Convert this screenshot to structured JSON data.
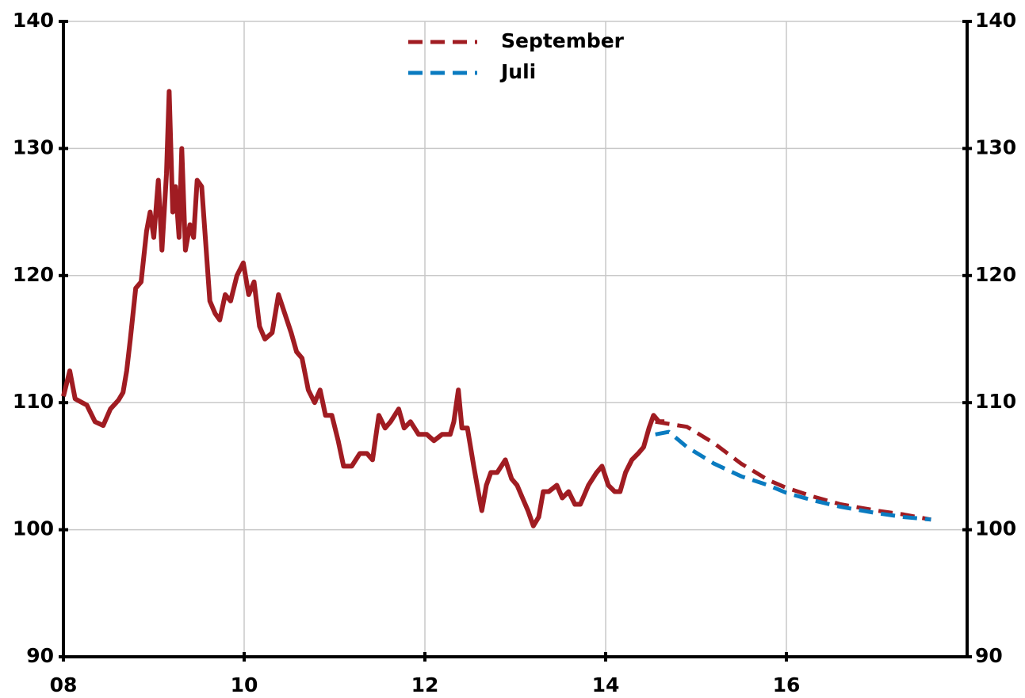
{
  "chart_data": {
    "type": "line",
    "xlim": [
      2008,
      2018
    ],
    "xticks": [
      {
        "value": 2008,
        "label": "08"
      },
      {
        "value": 2010,
        "label": "10"
      },
      {
        "value": 2012,
        "label": "12"
      },
      {
        "value": 2014,
        "label": "14"
      },
      {
        "value": 2016,
        "label": "16"
      }
    ],
    "ylim": [
      90,
      140
    ],
    "yticks": [
      90,
      100,
      110,
      120,
      130,
      140
    ],
    "y2lim": [
      90,
      140
    ],
    "y2ticks": [
      90,
      100,
      110,
      120,
      130,
      140
    ],
    "grid": true,
    "legend": "top",
    "series": [
      {
        "color": "#a01c22",
        "style": "solid",
        "x": [
          2008.0,
          2008.07,
          2008.13,
          2008.26,
          2008.35,
          2008.44,
          2008.52,
          2008.61,
          2008.66,
          2008.7,
          2008.74,
          2008.8,
          2008.86,
          2008.92,
          2008.96,
          2009.0,
          2009.05,
          2009.09,
          2009.14,
          2009.17,
          2009.21,
          2009.24,
          2009.28,
          2009.31,
          2009.35,
          2009.4,
          2009.44,
          2009.48,
          2009.53,
          2009.57,
          2009.62,
          2009.68,
          2009.73,
          2009.79,
          2009.85,
          2009.92,
          2009.99,
          2010.05,
          2010.11,
          2010.17,
          2010.23,
          2010.31,
          2010.38,
          2010.45,
          2010.52,
          2010.58,
          2010.64,
          2010.71,
          2010.78,
          2010.84,
          2010.9,
          2010.97,
          2011.04,
          2011.1,
          2011.19,
          2011.28,
          2011.36,
          2011.42,
          2011.49,
          2011.56,
          2011.62,
          2011.71,
          2011.77,
          2011.84,
          2011.93,
          2012.02,
          2012.1,
          2012.19,
          2012.28,
          2012.32,
          2012.37,
          2012.41,
          2012.47,
          2012.54,
          2012.59,
          2012.63,
          2012.68,
          2012.73,
          2012.8,
          2012.89,
          2012.96,
          2013.02,
          2013.08,
          2013.14,
          2013.2,
          2013.26,
          2013.31,
          2013.37,
          2013.46,
          2013.52,
          2013.59,
          2013.66,
          2013.72,
          2013.81,
          2013.9,
          2013.96,
          2014.03,
          2014.1,
          2014.16,
          2014.22,
          2014.29,
          2014.36,
          2014.42,
          2014.48,
          2014.53,
          2014.59,
          2014.65
        ],
        "values": [
          110.5,
          112.5,
          110.3,
          109.8,
          108.5,
          108.2,
          109.5,
          110.2,
          110.8,
          112.5,
          115,
          119,
          119.5,
          123.5,
          125,
          123,
          127.5,
          122,
          128,
          134.5,
          125,
          127,
          123,
          130,
          122,
          124,
          123,
          127.5,
          127,
          123,
          118,
          117,
          116.5,
          118.5,
          118,
          120,
          121,
          118.5,
          119.5,
          116,
          115,
          115.5,
          118.5,
          117,
          115.5,
          114,
          113.5,
          111,
          110,
          111,
          109,
          109,
          107,
          105,
          105,
          106,
          106,
          105.5,
          109,
          108,
          108.5,
          109.5,
          108,
          108.5,
          107.5,
          107.5,
          107,
          107.5,
          107.5,
          108.5,
          111,
          108,
          108,
          105,
          103,
          101.5,
          103.5,
          104.5,
          104.5,
          105.5,
          104,
          103.5,
          102.5,
          101.5,
          100.3,
          101,
          103,
          103,
          103.5,
          102.5,
          103,
          102,
          102,
          103.5,
          104.5,
          105,
          103.5,
          103,
          103,
          104.5,
          105.5,
          106,
          106.5,
          108,
          109,
          108.5,
          108.5
        ]
      },
      {
        "name": "September",
        "color": "#a01c22",
        "style": "dashed",
        "x": [
          2014.55,
          2014.9,
          2015.2,
          2015.5,
          2015.8,
          2016.0,
          2016.3,
          2016.6,
          2017.0,
          2017.3,
          2017.6
        ],
        "values": [
          108.5,
          108.1,
          106.8,
          105.2,
          103.9,
          103.3,
          102.6,
          102.0,
          101.5,
          101.2,
          100.8
        ]
      },
      {
        "name": "Juli",
        "color": "#0a7bc0",
        "style": "dashed",
        "x": [
          2014.55,
          2014.7,
          2014.9,
          2015.2,
          2015.5,
          2015.8,
          2016.0,
          2016.3,
          2016.6,
          2017.0,
          2017.3,
          2017.6
        ],
        "values": [
          107.5,
          107.7,
          106.5,
          105.2,
          104.2,
          103.5,
          102.9,
          102.3,
          101.8,
          101.3,
          101.0,
          100.8
        ]
      }
    ]
  }
}
